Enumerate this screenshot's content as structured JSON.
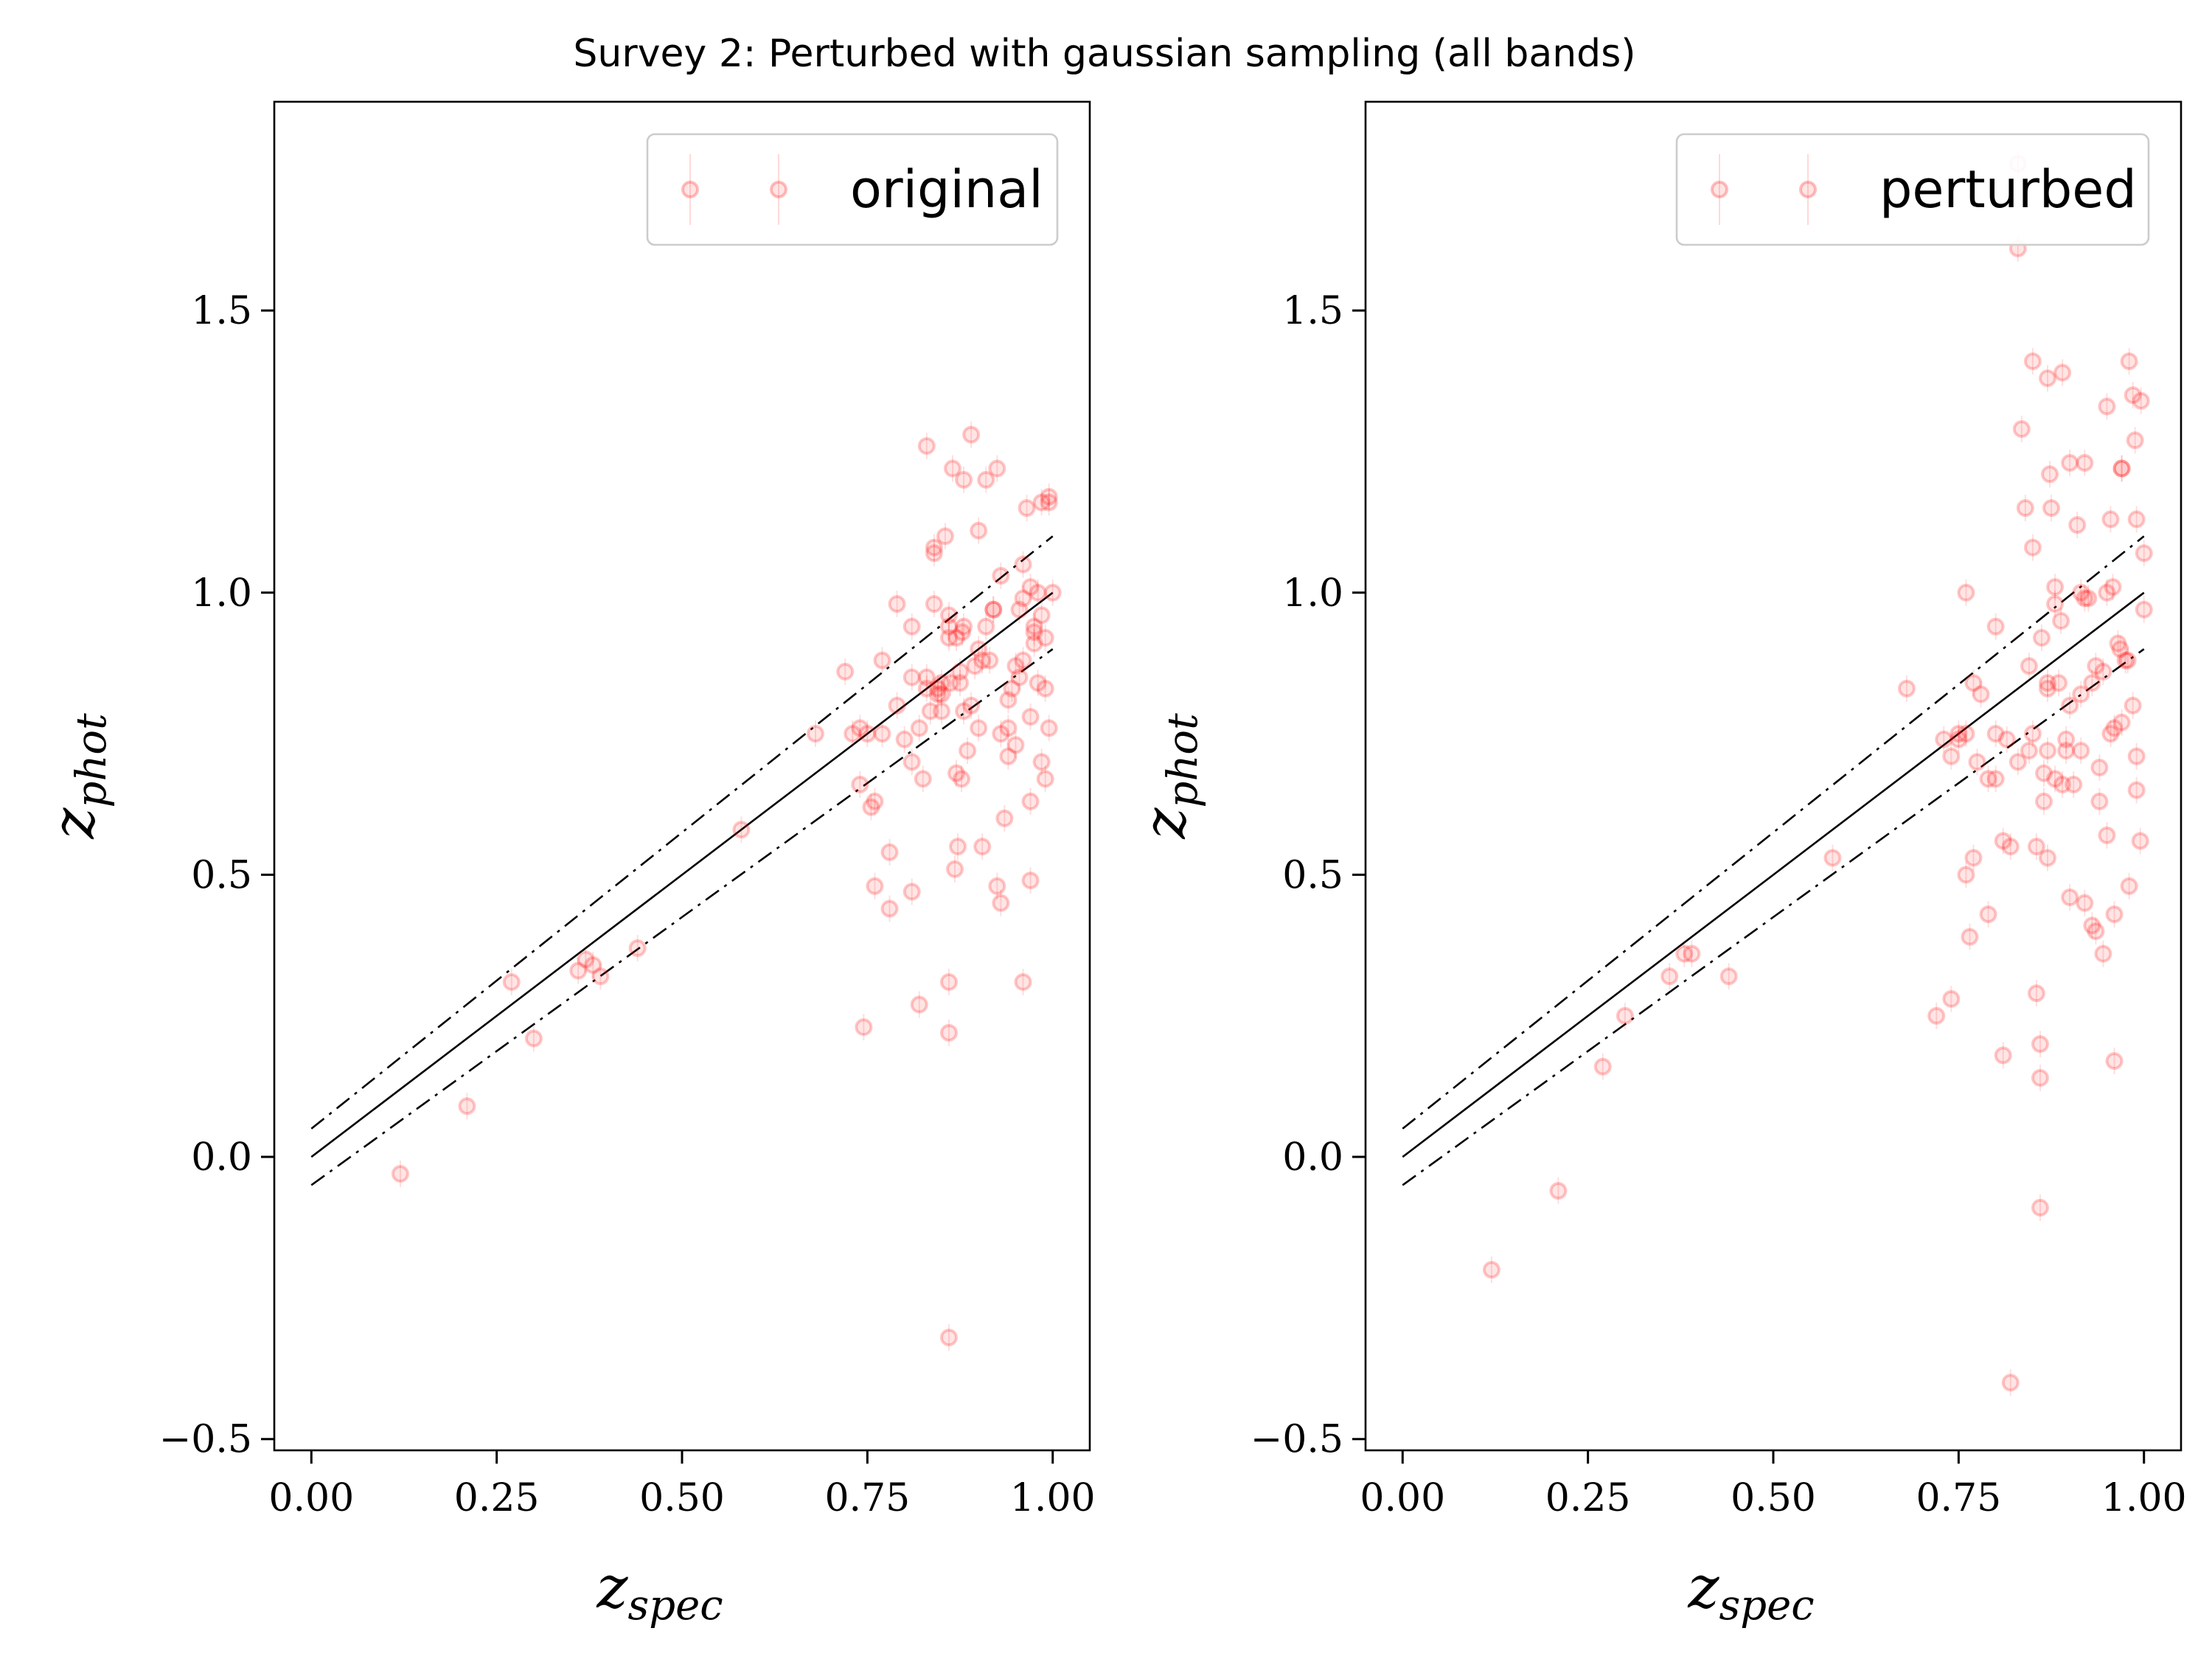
{
  "title": "Survey 2: Perturbed with gaussian sampling (all bands)",
  "colors": {
    "marker": "#ff0000",
    "lines": "#000000"
  },
  "chart_data": [
    {
      "type": "scatter",
      "xlabel": "z",
      "xlabel_sub": "spec",
      "ylabel": "z",
      "ylabel_sub": "phot",
      "xlim": [
        -0.05,
        1.05
      ],
      "ylim": [
        -0.52,
        1.87
      ],
      "xticks": [
        0,
        0.25,
        0.5,
        0.75,
        1
      ],
      "xtick_labels": [
        "0.00",
        "0.25",
        "0.50",
        "0.75",
        "1.00"
      ],
      "yticks": [
        -0.5,
        0,
        0.5,
        1,
        1.5
      ],
      "ytick_labels": [
        "−0.5",
        "0.0",
        "0.5",
        "1.0",
        "1.5"
      ],
      "legend": {
        "label": "original",
        "position": "upper right"
      },
      "grid": false,
      "reference_lines": [
        {
          "label": "z_phot = z_spec",
          "offset": 0,
          "style": "solid"
        },
        {
          "label": "+0.05(1+z)",
          "offset": 0.05,
          "style": "dashdot"
        },
        {
          "label": "-0.05(1+z)",
          "offset": -0.05,
          "style": "dashdot"
        }
      ],
      "series": [
        {
          "x": [
            0.12,
            0.21,
            0.27,
            0.3,
            0.36,
            0.37,
            0.38,
            0.39,
            0.44,
            0.58,
            0.68,
            0.72,
            0.73,
            0.74,
            0.745,
            0.76,
            0.76,
            0.77,
            0.78,
            0.78,
            0.79,
            0.8,
            0.81,
            0.81,
            0.82,
            0.83,
            0.84,
            0.84,
            0.845,
            0.85,
            0.855,
            0.86,
            0.86,
            0.865,
            0.87,
            0.87,
            0.875,
            0.88,
            0.88,
            0.885,
            0.89,
            0.895,
            0.9,
            0.905,
            0.91,
            0.915,
            0.92,
            0.925,
            0.93,
            0.935,
            0.94,
            0.945,
            0.95,
            0.955,
            0.96,
            0.96,
            0.965,
            0.97,
            0.97,
            0.975,
            0.98,
            0.98,
            0.985,
            0.99,
            0.99,
            0.995,
            1.0,
            0.74,
            0.755,
            0.79,
            0.81,
            0.825,
            0.835,
            0.85,
            0.862,
            0.868,
            0.872,
            0.877,
            0.89,
            0.9,
            0.91,
            0.92,
            0.93,
            0.94,
            0.95,
            0.96,
            0.97,
            0.975,
            0.985,
            0.995,
            0.86,
            0.86,
            0.875,
            0.86,
            0.82,
            0.83,
            0.845,
            0.878,
            0.905,
            0.93,
            0.96,
            0.975,
            0.985,
            0.995,
            0.99,
            0.97,
            0.955,
            0.94,
            0.925,
            0.9,
            0.88,
            0.86,
            0.85,
            0.84,
            0.83,
            0.81,
            0.77,
            0.75
          ],
          "y": [
            -0.03,
            0.09,
            0.31,
            0.21,
            0.33,
            0.35,
            0.34,
            0.32,
            0.37,
            0.58,
            0.75,
            0.86,
            0.75,
            0.66,
            0.23,
            0.63,
            0.48,
            0.88,
            0.44,
            0.54,
            0.98,
            0.74,
            0.94,
            0.47,
            0.27,
            1.26,
            0.98,
            1.08,
            0.83,
            0.79,
            1.1,
            0.31,
            0.22,
            1.22,
            0.68,
            0.92,
            0.86,
            0.94,
            1.2,
            0.72,
            1.28,
            0.87,
            1.11,
            0.55,
            1.2,
            0.88,
            0.97,
            1.22,
            0.45,
            0.6,
            0.76,
            0.83,
            0.87,
            0.97,
            1.05,
            0.31,
            1.15,
            0.49,
            0.78,
            0.93,
            1.0,
            0.84,
            1.16,
            0.92,
            0.83,
            0.76,
            1.0,
            0.76,
            0.62,
            0.8,
            0.7,
            0.67,
            0.79,
            0.82,
            0.84,
            0.51,
            0.55,
            0.67,
            0.8,
            0.9,
            0.94,
            0.97,
            0.75,
            0.81,
            0.73,
            0.88,
            0.63,
            0.94,
            0.7,
            1.16,
            -0.32,
            0.94,
            0.84,
            0.96,
            0.76,
            0.85,
            0.82,
            0.93,
            0.88,
            1.03,
            0.99,
            0.91,
            0.96,
            1.17,
            0.67,
            1.01,
            0.85,
            0.71,
            0.48,
            0.76,
            0.79,
            0.92,
            0.84,
            1.07,
            0.83,
            0.85,
            0.75,
            0.75
          ]
        }
      ]
    },
    {
      "type": "scatter",
      "xlabel": "z",
      "xlabel_sub": "spec",
      "ylabel": "z",
      "ylabel_sub": "phot",
      "xlim": [
        -0.05,
        1.05
      ],
      "ylim": [
        -0.52,
        1.87
      ],
      "xticks": [
        0,
        0.25,
        0.5,
        0.75,
        1
      ],
      "xtick_labels": [
        "0.00",
        "0.25",
        "0.50",
        "0.75",
        "1.00"
      ],
      "yticks": [
        -0.5,
        0,
        0.5,
        1,
        1.5
      ],
      "ytick_labels": [
        "−0.5",
        "0.0",
        "0.5",
        "1.0",
        "1.5"
      ],
      "legend": {
        "label": "perturbed",
        "position": "upper right"
      },
      "grid": false,
      "reference_lines": [
        {
          "label": "z_phot = z_spec",
          "offset": 0,
          "style": "solid"
        },
        {
          "label": "+0.05(1+z)",
          "offset": 0.05,
          "style": "dashdot"
        },
        {
          "label": "-0.05(1+z)",
          "offset": -0.05,
          "style": "dashdot"
        }
      ],
      "series": [
        {
          "x": [
            0.12,
            0.21,
            0.27,
            0.3,
            0.36,
            0.38,
            0.39,
            0.44,
            0.58,
            0.68,
            0.72,
            0.73,
            0.74,
            0.75,
            0.76,
            0.76,
            0.765,
            0.77,
            0.775,
            0.78,
            0.79,
            0.8,
            0.8,
            0.81,
            0.81,
            0.815,
            0.82,
            0.82,
            0.83,
            0.83,
            0.835,
            0.84,
            0.845,
            0.85,
            0.85,
            0.855,
            0.86,
            0.86,
            0.86,
            0.865,
            0.87,
            0.87,
            0.87,
            0.875,
            0.88,
            0.88,
            0.885,
            0.89,
            0.89,
            0.895,
            0.9,
            0.905,
            0.91,
            0.915,
            0.92,
            0.925,
            0.93,
            0.935,
            0.94,
            0.945,
            0.95,
            0.95,
            0.955,
            0.96,
            0.96,
            0.965,
            0.97,
            0.97,
            0.975,
            0.98,
            0.98,
            0.985,
            0.99,
            0.99,
            0.995,
            1.0,
            1.0,
            0.85,
            0.862,
            0.873,
            0.888,
            0.9,
            0.915,
            0.93,
            0.945,
            0.958,
            0.968,
            0.978,
            0.988,
            0.996,
            0.96,
            0.94,
            0.92,
            0.9,
            0.87,
            0.855,
            0.845,
            0.83,
            0.8,
            0.79,
            0.77,
            0.75,
            0.74,
            0.76,
            0.865,
            0.88,
            0.92,
            0.95,
            0.97,
            0.99,
            0.985,
            0.955,
            0.935,
            0.915,
            0.895,
            0.87
          ],
          "y": [
            -0.2,
            -0.06,
            0.16,
            0.25,
            0.32,
            0.36,
            0.36,
            0.32,
            0.53,
            0.83,
            0.25,
            0.74,
            0.28,
            0.75,
            0.5,
            1.0,
            0.39,
            0.53,
            0.7,
            0.82,
            0.43,
            0.67,
            0.94,
            0.56,
            0.18,
            0.74,
            0.55,
            -0.4,
            1.76,
            1.61,
            1.29,
            1.15,
            0.87,
            1.41,
            0.75,
            0.29,
            0.2,
            0.14,
            -0.09,
            0.63,
            1.38,
            0.84,
            0.53,
            1.15,
            1.01,
            0.67,
            0.84,
            1.39,
            0.66,
            0.72,
            0.46,
            0.66,
            1.12,
            1.0,
            0.45,
            0.99,
            0.41,
            0.4,
            0.63,
            0.36,
            1.33,
            0.57,
            1.13,
            0.43,
            0.17,
            0.91,
            1.22,
            0.77,
            0.88,
            1.41,
            0.48,
            1.35,
            0.65,
            0.71,
            0.56,
            1.07,
            0.97,
            1.08,
            0.92,
            1.21,
            0.95,
            0.8,
            0.72,
            0.84,
            0.86,
            1.01,
            0.9,
            0.88,
            1.27,
            1.34,
            0.76,
            0.69,
            0.99,
            1.23,
            0.72,
            0.55,
            0.72,
            0.7,
            0.75,
            0.67,
            0.84,
            0.74,
            0.71,
            0.75,
            0.68,
            0.98,
            1.23,
            1.0,
            1.22,
            1.13,
            0.8,
            0.75,
            0.87,
            0.82,
            0.74,
            0.83
          ]
        }
      ]
    }
  ]
}
